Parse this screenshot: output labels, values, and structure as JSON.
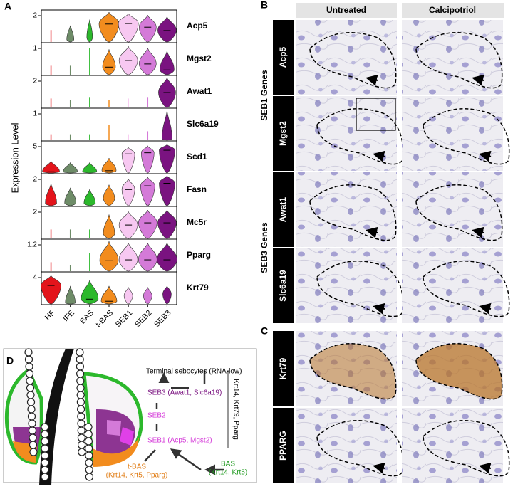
{
  "panels": {
    "A": {
      "label": "A",
      "y_axis_label": "Expression Level",
      "genes": [
        {
          "name": "Acp5",
          "tick": "2"
        },
        {
          "name": "Mgst2",
          "tick": "1"
        },
        {
          "name": "Awat1",
          "tick": "2"
        },
        {
          "name": "Slc6a19",
          "tick": "1"
        },
        {
          "name": "Scd1",
          "tick": "5"
        },
        {
          "name": "Fasn",
          "tick": "2"
        },
        {
          "name": "Mc5r",
          "tick": "2"
        },
        {
          "name": "Pparg",
          "tick": "1.2"
        },
        {
          "name": "Krt79",
          "tick": "4"
        }
      ],
      "cell_types": [
        {
          "name": "HF",
          "color": "#e3141b"
        },
        {
          "name": "IFE",
          "color": "#6e8c68"
        },
        {
          "name": "BAS",
          "color": "#2cb82c"
        },
        {
          "name": "t-BAS",
          "color": "#f28c1e"
        },
        {
          "name": "SEB1",
          "color": "#f7c8f1"
        },
        {
          "name": "SEB2",
          "color": "#d47ad8"
        },
        {
          "name": "SEB3",
          "color": "#7a1380"
        }
      ]
    },
    "B": {
      "label": "B",
      "columns": [
        "Untreated",
        "Calcipotriol"
      ],
      "groups": [
        {
          "label": "SEB1 Genes",
          "rows": [
            "Acp5",
            "Mgst2"
          ]
        },
        {
          "label": "SEB3 Genes",
          "rows": [
            "Awat1",
            "Slc6a19"
          ]
        }
      ]
    },
    "C": {
      "label": "C",
      "rows": [
        "Krt79",
        "PPARG"
      ]
    },
    "D": {
      "label": "D",
      "terminal": "Terminal sebocytes (RNA-low)",
      "seb3": "SEB3 (Awat1, Slc6a19)",
      "seb2": "SEB2",
      "seb1": "SEB1 (Acp5, Mgst2)",
      "tbas": "t-BAS",
      "tbas_genes": "(Krt14, Krt5, Pparg)",
      "bas": "BAS",
      "bas_genes": "(Krt14, Krt5)",
      "markers": "Krt14, Krt79, Pparg"
    }
  }
}
